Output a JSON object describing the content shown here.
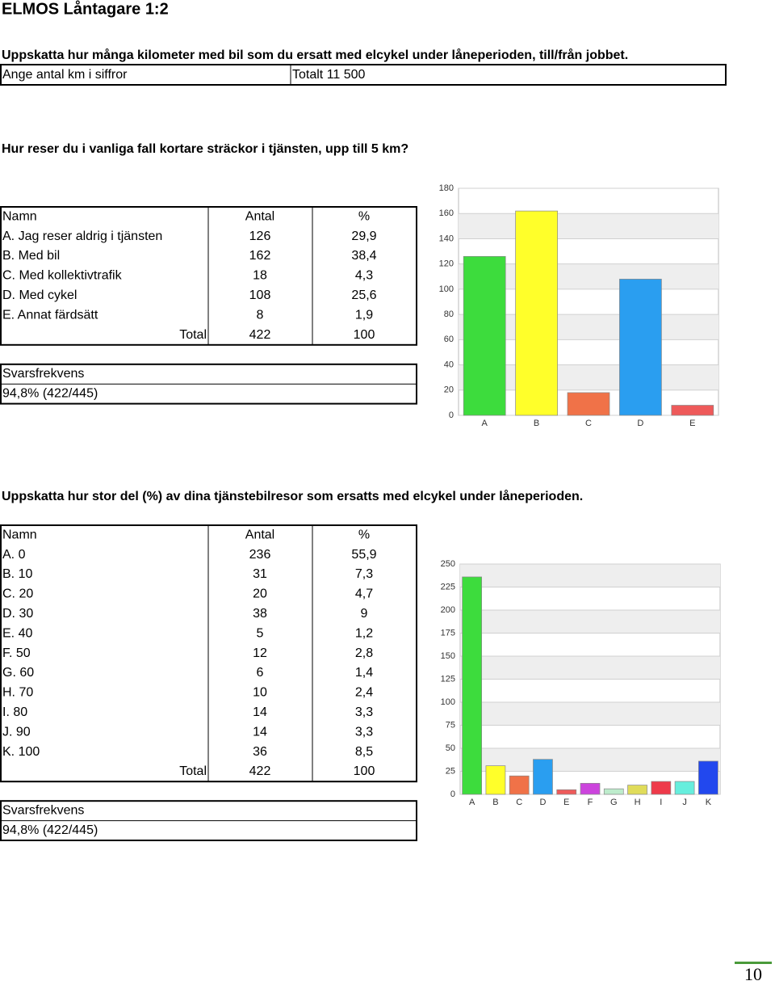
{
  "title": "ELMOS Låntagare 1:2",
  "section1": {
    "question": "Uppskatta hur många kilometer med bil som du ersatt med elcykel under låneperioden, till/från jobbet.",
    "row": [
      "Ange antal km i siffror",
      "Totalt 11 500"
    ]
  },
  "section2": {
    "question": "Hur reser du i vanliga fall kortare sträckor i tjänsten, upp till 5 km?",
    "table": {
      "header": [
        "Namn",
        "Antal",
        "%"
      ],
      "rows": [
        [
          "A. Jag reser aldrig i tjänsten",
          126,
          "29,9"
        ],
        [
          "B. Med bil",
          162,
          "38,4"
        ],
        [
          "C. Med kollektivtrafik",
          18,
          "4,3"
        ],
        [
          "D. Med cykel",
          108,
          "25,6"
        ],
        [
          "E. Annat färdsätt",
          8,
          "1,9"
        ]
      ],
      "total": [
        "Total",
        422,
        100
      ]
    },
    "response": [
      "Svarsfrekvens",
      "94,8% (422/445)"
    ],
    "chart_data": {
      "type": "bar",
      "categories": [
        "A",
        "B",
        "C",
        "D",
        "E"
      ],
      "values": [
        126,
        162,
        18,
        108,
        8
      ],
      "colors": [
        "#3ddc3d",
        "#ffff2a",
        "#f07248",
        "#2a9ef0",
        "#ee5a5a"
      ],
      "ylim": [
        0,
        180
      ],
      "yticks": [
        0,
        20,
        40,
        60,
        80,
        100,
        120,
        140,
        160,
        180
      ],
      "grid": true
    }
  },
  "section3": {
    "question": "Uppskatta hur stor del (%) av dina tjänstebilresor som ersatts med elcykel under låneperioden.",
    "table": {
      "header": [
        "Namn",
        "Antal",
        "%"
      ],
      "rows": [
        [
          "A. 0",
          236,
          "55,9"
        ],
        [
          "B. 10",
          31,
          "7,3"
        ],
        [
          "C. 20",
          20,
          "4,7"
        ],
        [
          "D. 30",
          38,
          "9"
        ],
        [
          "E. 40",
          5,
          "1,2"
        ],
        [
          "F. 50",
          12,
          "2,8"
        ],
        [
          "G. 60",
          6,
          "1,4"
        ],
        [
          "H. 70",
          10,
          "2,4"
        ],
        [
          "I. 80",
          14,
          "3,3"
        ],
        [
          "J. 90",
          14,
          "3,3"
        ],
        [
          "K. 100",
          36,
          "8,5"
        ]
      ],
      "total": [
        "Total",
        422,
        100
      ]
    },
    "response": [
      "Svarsfrekvens",
      "94,8% (422/445)"
    ],
    "chart_data": {
      "type": "bar",
      "categories": [
        "A",
        "B",
        "C",
        "D",
        "E",
        "F",
        "G",
        "H",
        "I",
        "J",
        "K"
      ],
      "values": [
        236,
        31,
        20,
        38,
        5,
        12,
        6,
        10,
        14,
        14,
        36
      ],
      "colors": [
        "#3ddc3d",
        "#ffff2a",
        "#f07248",
        "#2a9ef0",
        "#ee5a5a",
        "#cc44dd",
        "#bdeccc",
        "#e0dc5a",
        "#ee3a4a",
        "#66eedd",
        "#2248ee"
      ],
      "ylim": [
        0,
        250
      ],
      "yticks": [
        0,
        25,
        50,
        75,
        100,
        125,
        150,
        175,
        200,
        225,
        250
      ],
      "grid": true
    }
  },
  "page_number": "10"
}
